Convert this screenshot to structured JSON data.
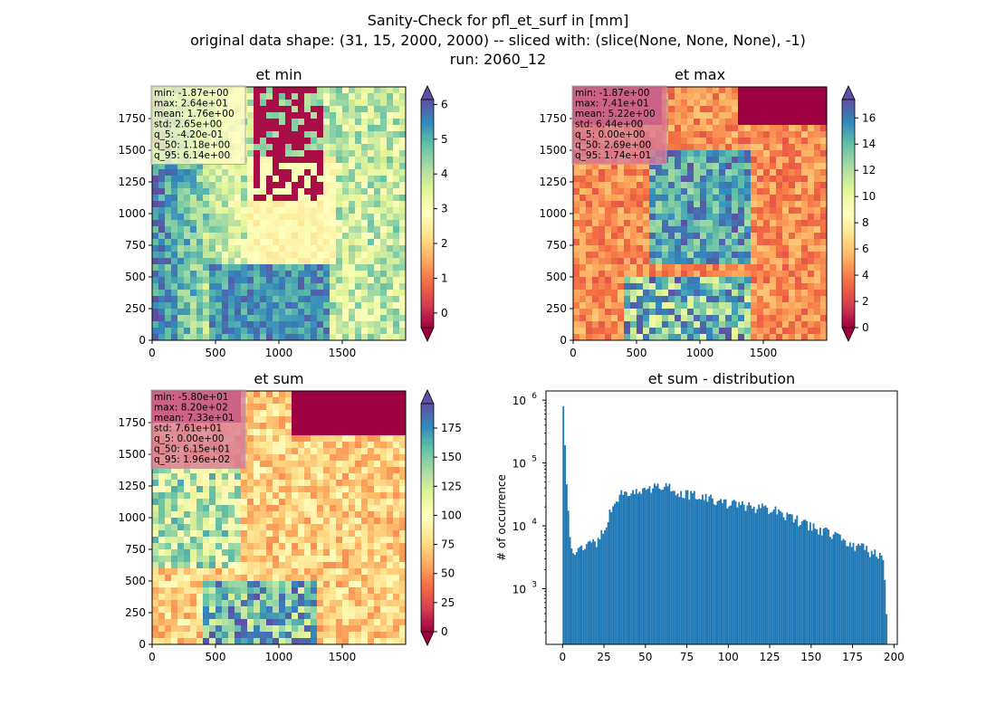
{
  "figure": {
    "title_lines": [
      "Sanity-Check for pfl_et_surf in [mm]",
      "original data shape: (31, 15, 2000, 2000) -- sliced with: (slice(None, None, None), -1)",
      "run: 2060_12"
    ]
  },
  "colors": {
    "spectral": [
      "#9e0142",
      "#d53e4f",
      "#f46d43",
      "#fdae61",
      "#fee08b",
      "#ffffbf",
      "#e6f598",
      "#abdda4",
      "#66c2a5",
      "#3288bd",
      "#5e4fa2"
    ],
    "histogram": "#1f77b4"
  },
  "panels": [
    {
      "title": "et min",
      "xticks": [
        "0",
        "500",
        "1000",
        "1500"
      ],
      "yticks": [
        "0",
        "250",
        "500",
        "750",
        "1000",
        "1250",
        "1500",
        "1750"
      ],
      "colorbar": {
        "ticks": [
          "0",
          "1",
          "2",
          "3",
          "4",
          "5",
          "6"
        ],
        "vmin": -0.42,
        "vmax": 6.14
      },
      "stats": [
        "min: -1.87e+00",
        "max: 2.64e+01",
        "mean: 1.76e+00",
        "std: 2.65e+00",
        "q_5: -4.20e-01",
        "q_50: 1.18e+00",
        "q_95: 6.14e+00"
      ],
      "stats_bg": "#fefcc4"
    },
    {
      "title": "et max",
      "xticks": [
        "0",
        "500",
        "1000",
        "1500"
      ],
      "yticks": [
        "0",
        "250",
        "500",
        "750",
        "1000",
        "1250",
        "1500",
        "1750"
      ],
      "colorbar": {
        "ticks": [
          "0",
          "2",
          "4",
          "6",
          "8",
          "10",
          "12",
          "14",
          "16"
        ],
        "vmin": 0,
        "vmax": 17.4
      },
      "stats": [
        "min: -1.87e+00",
        "max: 7.41e+01",
        "mean: 5.22e+00",
        "std: 6.44e+00",
        "q_5: 0.00e+00",
        "q_50: 2.69e+00",
        "q_95: 1.74e+01"
      ],
      "stats_bg": "#d77a97"
    },
    {
      "title": "et sum",
      "xticks": [
        "0",
        "500",
        "1000",
        "1500"
      ],
      "yticks": [
        "0",
        "250",
        "500",
        "750",
        "1000",
        "1250",
        "1500",
        "1750"
      ],
      "colorbar": {
        "ticks": [
          "0",
          "25",
          "50",
          "75",
          "100",
          "125",
          "150",
          "175"
        ],
        "vmin": 0,
        "vmax": 196
      },
      "stats": [
        "min: -5.80e+01",
        "max: 8.20e+02",
        "mean: 7.33e+01",
        "std: 7.61e+01",
        "q_5: 0.00e+00",
        "q_50: 6.15e+01",
        "q_95: 1.96e+02"
      ],
      "stats_bg": "#d77a97"
    }
  ],
  "chart_data": [
    {
      "type": "heatmap",
      "title": "et min",
      "xlim": [
        0,
        2000
      ],
      "ylim": [
        0,
        2000
      ],
      "colorbar_range": [
        -0.42,
        6.14
      ]
    },
    {
      "type": "heatmap",
      "title": "et max",
      "xlim": [
        0,
        2000
      ],
      "ylim": [
        0,
        2000
      ],
      "colorbar_range": [
        0,
        17.4
      ]
    },
    {
      "type": "heatmap",
      "title": "et sum",
      "xlim": [
        0,
        2000
      ],
      "ylim": [
        0,
        2000
      ],
      "colorbar_range": [
        0,
        196
      ]
    },
    {
      "type": "bar",
      "title": "et sum - distribution",
      "ylabel": "# of occurrence",
      "xlabel": "",
      "yscale": "log",
      "xlim": [
        -10,
        202
      ],
      "ylim": [
        130,
        1400000
      ],
      "xticks": [
        "0",
        "25",
        "50",
        "75",
        "100",
        "125",
        "150",
        "175",
        "200"
      ],
      "ytick_exponents": [
        "3",
        "4",
        "5",
        "6"
      ],
      "x": [
        0,
        5,
        10,
        15,
        20,
        25,
        30,
        35,
        40,
        45,
        50,
        55,
        60,
        65,
        70,
        75,
        80,
        85,
        90,
        95,
        100,
        105,
        110,
        115,
        120,
        125,
        130,
        135,
        140,
        145,
        150,
        155,
        160,
        165,
        170,
        175,
        180,
        185,
        190,
        194,
        196
      ],
      "values": [
        800000,
        4000,
        4500,
        5000,
        5500,
        8000,
        20000,
        33000,
        36000,
        36000,
        36000,
        40000,
        47000,
        40000,
        36000,
        32000,
        30000,
        28000,
        26000,
        24000,
        22000,
        22000,
        20000,
        20000,
        19000,
        18000,
        17000,
        15000,
        13000,
        11000,
        10000,
        9000,
        8000,
        7000,
        6000,
        5000,
        4500,
        4000,
        3500,
        3000,
        200
      ]
    }
  ]
}
